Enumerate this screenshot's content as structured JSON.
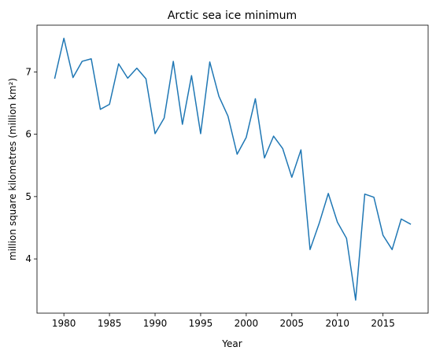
{
  "chart_data": {
    "type": "line",
    "title": "Arctic sea ice minimum",
    "xlabel": "Year",
    "ylabel": "million square kilometres (million km²)",
    "xlim": [
      1977.05,
      2019.95
    ],
    "ylim": [
      3.13,
      7.75
    ],
    "xticks": [
      1980,
      1985,
      1990,
      1995,
      2000,
      2005,
      2010,
      2015
    ],
    "yticks": [
      4,
      5,
      6,
      7
    ],
    "grid": false,
    "series": [
      {
        "color": "#1f77b4",
        "x": [
          1979,
          1980,
          1981,
          1982,
          1983,
          1984,
          1985,
          1986,
          1987,
          1988,
          1989,
          1990,
          1991,
          1992,
          1993,
          1994,
          1995,
          1996,
          1997,
          1998,
          1999,
          2000,
          2001,
          2002,
          2003,
          2004,
          2005,
          2006,
          2007,
          2008,
          2009,
          2010,
          2011,
          2012,
          2013,
          2014,
          2015,
          2016,
          2017,
          2018
        ],
        "y": [
          6.9,
          7.54,
          6.91,
          7.17,
          7.21,
          6.4,
          6.48,
          7.13,
          6.9,
          7.06,
          6.89,
          6.01,
          6.26,
          7.17,
          6.16,
          6.94,
          6.01,
          7.16,
          6.61,
          6.29,
          5.68,
          5.95,
          6.57,
          5.62,
          5.97,
          5.77,
          5.31,
          5.75,
          4.15,
          4.57,
          5.05,
          4.59,
          4.33,
          3.34,
          5.04,
          4.99,
          4.38,
          4.15,
          4.64,
          4.56
        ]
      }
    ]
  }
}
